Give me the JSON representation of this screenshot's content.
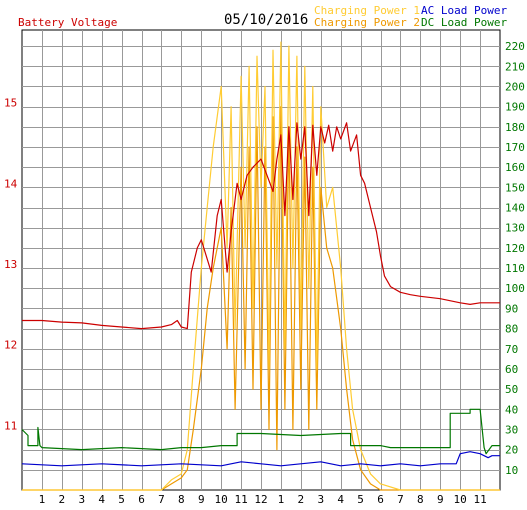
{
  "chart_data": {
    "type": "line",
    "title": "05/10/2016",
    "colors": {
      "battery_voltage": "#cc0000",
      "charging_power_1": "#ffcc33",
      "charging_power_2": "#ee9900",
      "ac_load_power": "#0000cc",
      "dc_load_power": "#007700",
      "grid": "#999999",
      "left_axis_labels": "#cc0000",
      "right_axis_labels": "#007700"
    },
    "legend": {
      "battery_voltage": "Battery Voltage",
      "charging_power_1": "Charging Power 1",
      "charging_power_2": "Charging Power 2",
      "ac_load_power": "AC Load Power",
      "dc_load_power": "DC Load Power"
    },
    "left_axis": {
      "ylim": [
        10.2,
        15.9
      ],
      "ticks": [
        "11",
        "12",
        "13",
        "14",
        "15"
      ]
    },
    "right_axis": {
      "ylim": [
        0,
        228
      ],
      "ticks": [
        "10",
        "20",
        "30",
        "40",
        "50",
        "60",
        "70",
        "80",
        "90",
        "100",
        "110",
        "120",
        "130",
        "140",
        "150",
        "160",
        "170",
        "180",
        "190",
        "200",
        "210",
        "220"
      ]
    },
    "x_axis": {
      "xlim": [
        0,
        24
      ],
      "tick_labels": [
        "1",
        "2",
        "3",
        "4",
        "5",
        "6",
        "7",
        "8",
        "9",
        "10",
        "11",
        "12",
        "1",
        "2",
        "3",
        "4",
        "5",
        "6",
        "7",
        "8",
        "9",
        "10",
        "11"
      ]
    },
    "series": [
      {
        "name": "Battery Voltage",
        "axis": "left",
        "x": [
          0,
          1,
          2,
          3,
          4,
          5,
          6,
          7,
          7.5,
          7.8,
          8,
          8.3,
          8.5,
          8.8,
          9,
          9.5,
          9.8,
          10,
          10.3,
          10.5,
          10.8,
          11,
          11.3,
          11.6,
          12,
          12.3,
          12.6,
          12.8,
          13,
          13.2,
          13.4,
          13.6,
          13.8,
          14,
          14.2,
          14.4,
          14.6,
          14.8,
          15,
          15.2,
          15.4,
          15.6,
          15.8,
          16,
          16.3,
          16.5,
          16.8,
          17,
          17.2,
          17.5,
          17.8,
          18,
          18.2,
          18.5,
          19,
          19.5,
          20,
          21,
          22,
          22.5,
          23,
          24
        ],
        "y": [
          12.3,
          12.3,
          12.28,
          12.27,
          12.24,
          12.22,
          12.2,
          12.22,
          12.25,
          12.3,
          12.22,
          12.2,
          12.9,
          13.2,
          13.3,
          12.9,
          13.6,
          13.8,
          12.9,
          13.4,
          14.0,
          13.8,
          14.1,
          14.2,
          14.3,
          14.1,
          13.9,
          14.3,
          14.6,
          13.6,
          14.7,
          13.8,
          14.75,
          14.3,
          14.7,
          13.6,
          14.72,
          14.1,
          14.7,
          14.5,
          14.72,
          14.4,
          14.7,
          14.55,
          14.75,
          14.4,
          14.6,
          14.1,
          14.0,
          13.7,
          13.4,
          13.1,
          12.85,
          12.72,
          12.65,
          12.62,
          12.6,
          12.57,
          12.52,
          12.5,
          12.52,
          12.52
        ]
      },
      {
        "name": "Charging Power 1",
        "axis": "right",
        "x": [
          0,
          6,
          7,
          7.5,
          8,
          8.3,
          8.6,
          9,
          9.3,
          9.6,
          10,
          10.3,
          10.5,
          10.7,
          11,
          11.2,
          11.4,
          11.6,
          11.8,
          12,
          12.2,
          12.4,
          12.6,
          12.8,
          13,
          13.2,
          13.4,
          13.6,
          13.8,
          14,
          14.2,
          14.4,
          14.6,
          14.8,
          15,
          15.3,
          15.6,
          16,
          16.3,
          16.6,
          17,
          17.5,
          18,
          19,
          20,
          24
        ],
        "y": [
          0,
          0,
          0,
          5,
          8,
          20,
          60,
          110,
          140,
          170,
          200,
          120,
          190,
          80,
          205,
          120,
          210,
          90,
          215,
          150,
          200,
          60,
          218,
          110,
          222,
          70,
          220,
          110,
          215,
          80,
          210,
          100,
          200,
          60,
          190,
          140,
          150,
          110,
          70,
          40,
          20,
          8,
          3,
          0,
          0,
          0
        ]
      },
      {
        "name": "Charging Power 2",
        "axis": "right",
        "x": [
          0,
          6,
          7,
          7.5,
          8,
          8.3,
          8.6,
          9,
          9.3,
          9.6,
          10,
          10.3,
          10.5,
          10.7,
          11,
          11.2,
          11.4,
          11.6,
          11.8,
          12,
          12.2,
          12.4,
          12.6,
          12.8,
          13,
          13.2,
          13.4,
          13.6,
          13.8,
          14,
          14.2,
          14.4,
          14.6,
          14.8,
          15,
          15.3,
          15.6,
          16,
          16.3,
          16.6,
          17,
          17.5,
          18,
          19,
          20,
          24
        ],
        "y": [
          0,
          0,
          0,
          3,
          6,
          10,
          30,
          60,
          90,
          110,
          130,
          70,
          140,
          40,
          160,
          60,
          170,
          50,
          180,
          40,
          170,
          30,
          185,
          20,
          190,
          40,
          180,
          30,
          170,
          50,
          165,
          30,
          160,
          40,
          150,
          120,
          110,
          80,
          50,
          25,
          10,
          3,
          0,
          0,
          0,
          0
        ]
      },
      {
        "name": "AC Load Power",
        "axis": "right",
        "x": [
          0,
          2,
          4,
          6,
          8,
          10,
          11,
          12,
          13,
          14,
          15,
          16,
          17,
          18,
          19,
          20,
          21,
          21.8,
          22,
          22.5,
          23,
          23.4,
          23.6,
          24
        ],
        "y": [
          13,
          12,
          13,
          12,
          13,
          12,
          14,
          13,
          12,
          13,
          14,
          12,
          13,
          12,
          13,
          12,
          13,
          13,
          18,
          19,
          18,
          16,
          17,
          17
        ]
      },
      {
        "name": "DC Load Power",
        "axis": "right",
        "x": [
          0,
          0.3,
          0.3,
          0.6,
          0.8,
          0.8,
          0.9,
          1,
          3,
          5,
          7,
          8,
          9,
          10,
          10.8,
          10.8,
          12,
          14,
          16,
          16.5,
          16.5,
          18,
          18.5,
          19,
          21,
          21.5,
          21.5,
          22.5,
          22.5,
          23,
          23.2,
          23.3,
          23.6,
          24
        ],
        "y": [
          30,
          27,
          22,
          22,
          22,
          31,
          22,
          21,
          20,
          21,
          20,
          21,
          21,
          22,
          22,
          28,
          28,
          27,
          28,
          28,
          22,
          22,
          21,
          21,
          21,
          21,
          38,
          38,
          40,
          40,
          21,
          18,
          22,
          22
        ]
      }
    ]
  }
}
